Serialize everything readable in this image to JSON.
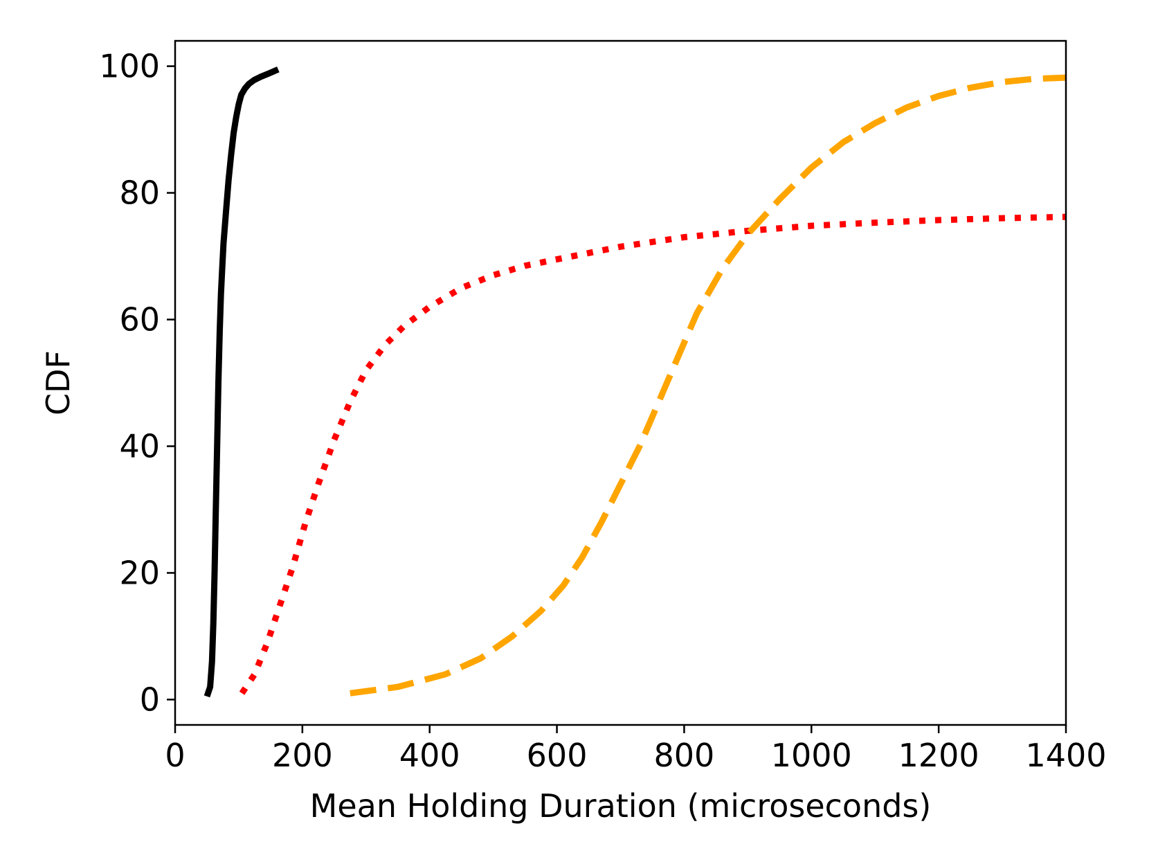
{
  "chart_data": {
    "type": "line",
    "title": "",
    "xlabel": "Mean Holding Duration (microseconds)",
    "ylabel": "CDF",
    "xlim": [
      0,
      1400
    ],
    "ylim": [
      -4,
      104
    ],
    "xticks": [
      0,
      200,
      400,
      600,
      800,
      1000,
      1200,
      1400
    ],
    "yticks": [
      0,
      20,
      40,
      60,
      80,
      100
    ],
    "grid": false,
    "legend": "none",
    "series": [
      {
        "name": "black-solid",
        "color": "#000000",
        "style": "solid",
        "x": [
          50,
          55,
          58,
          60,
          62,
          64,
          66,
          68,
          70,
          72,
          74,
          76,
          80,
          84,
          88,
          92,
          96,
          100,
          104,
          110,
          116,
          124,
          134,
          146,
          162
        ],
        "y": [
          0.5,
          2,
          6,
          12,
          20,
          30,
          40,
          50,
          58,
          64,
          68,
          72,
          77,
          82,
          86,
          89.5,
          92,
          94,
          95.5,
          96.5,
          97.2,
          97.8,
          98.3,
          98.8,
          99.5
        ]
      },
      {
        "name": "red-dotted",
        "color": "#ff0000",
        "style": "dotted",
        "x": [
          105,
          125,
          145,
          165,
          185,
          205,
          225,
          250,
          275,
          300,
          330,
          360,
          400,
          450,
          500,
          550,
          600,
          700,
          800,
          900,
          1000,
          1100,
          1200,
          1300,
          1400
        ],
        "y": [
          1,
          4,
          9,
          15,
          21,
          28,
          34,
          41,
          47,
          52,
          56,
          59,
          62,
          65,
          67,
          68.5,
          69.5,
          71.5,
          73,
          74,
          74.8,
          75.3,
          75.7,
          76,
          76.2
        ]
      },
      {
        "name": "orange-dashed",
        "color": "#ffa500",
        "style": "dashed",
        "x": [
          275,
          350,
          425,
          480,
          530,
          575,
          610,
          640,
          670,
          700,
          730,
          760,
          790,
          820,
          860,
          900,
          950,
          1000,
          1050,
          1100,
          1150,
          1200,
          1250,
          1300,
          1350,
          1400
        ],
        "y": [
          1,
          2,
          4,
          6.5,
          10,
          14,
          18,
          22.5,
          28,
          34,
          40,
          47,
          54,
          61,
          68,
          73.5,
          79,
          84,
          88,
          91,
          93.5,
          95.3,
          96.6,
          97.5,
          98,
          98.2
        ]
      }
    ]
  }
}
